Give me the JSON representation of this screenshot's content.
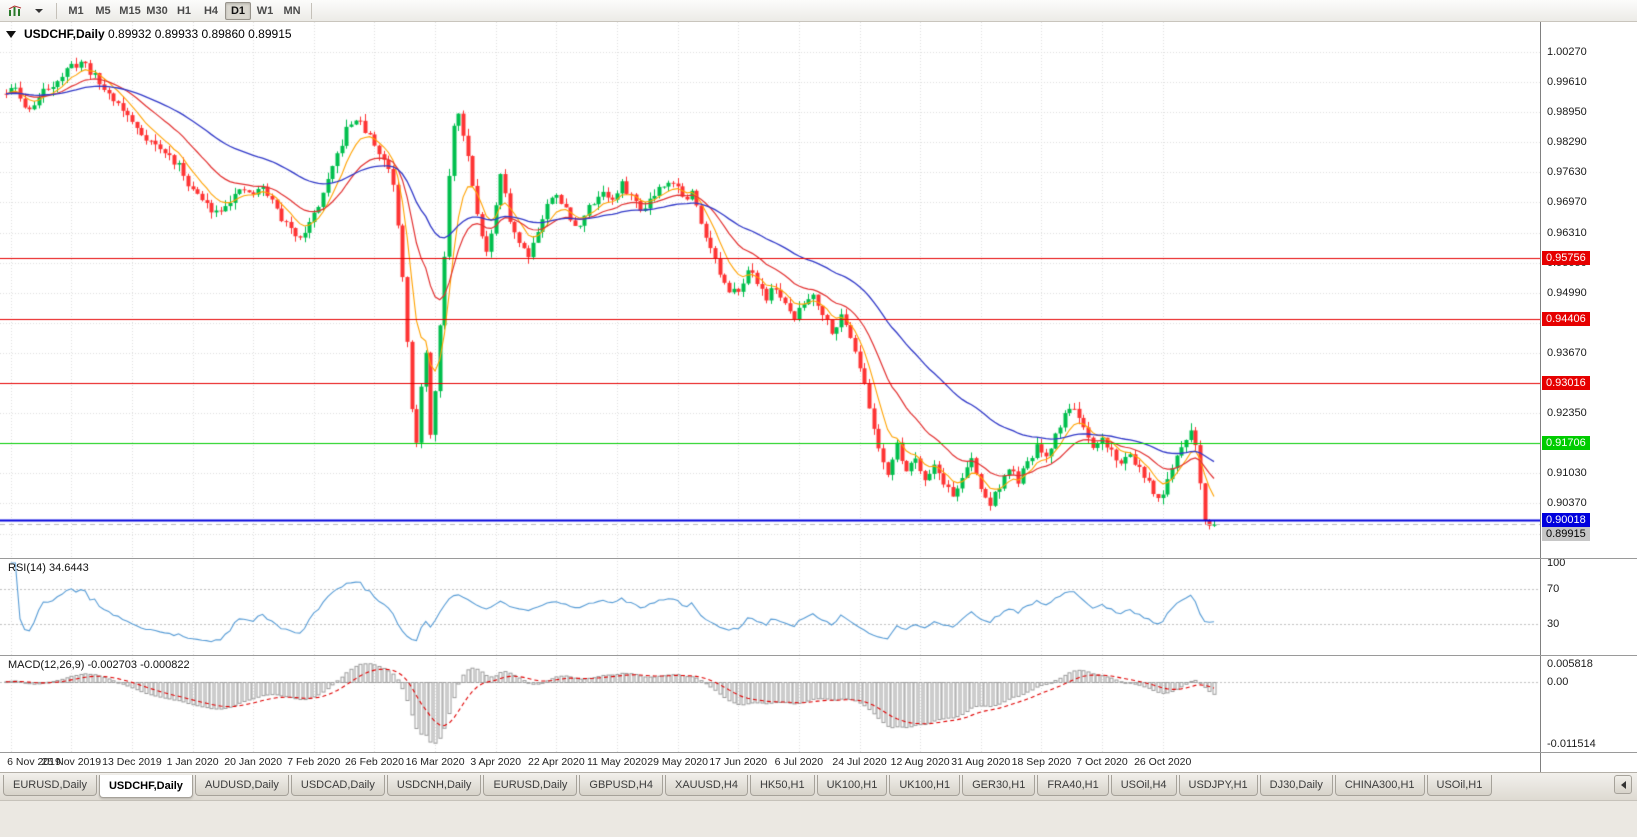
{
  "toolbar": {
    "timeframes": [
      "M1",
      "M5",
      "M15",
      "M30",
      "H1",
      "H4",
      "D1",
      "W1",
      "MN"
    ],
    "active_timeframe": "D1"
  },
  "header": {
    "symbol_period": "USDCHF,Daily",
    "ohlc": "0.89932 0.89933 0.89860 0.89915"
  },
  "price_axis": {
    "ticks": [
      "1.00270",
      "0.99610",
      "0.98950",
      "0.98290",
      "0.97630",
      "0.96970",
      "0.96310",
      "0.95650",
      "0.94990",
      "0.94330",
      "0.93670",
      "0.93010",
      "0.92350",
      "0.91690",
      "0.91030",
      "0.90370",
      "0.89710"
    ]
  },
  "hlines": [
    {
      "label": "0.95756",
      "price": 0.95756,
      "color": "#e60000",
      "text_color": "#ffffff",
      "width": 1
    },
    {
      "label": "0.94406",
      "price": 0.94406,
      "color": "#e60000",
      "text_color": "#ffffff",
      "width": 1
    },
    {
      "label": "0.93016",
      "price": 0.93016,
      "color": "#e60000",
      "text_color": "#ffffff",
      "width": 1
    },
    {
      "label": "0.91706",
      "price": 0.91706,
      "color": "#00cc00",
      "text_color": "#ffffff",
      "width": 1
    },
    {
      "label": "0.90018",
      "price": 0.90018,
      "color": "#0000dd",
      "text_color": "#ffffff",
      "width": 2
    }
  ],
  "current_price": {
    "label": "0.89915",
    "value": 0.89915,
    "badge_bg": "#c6c6c6",
    "badge_text": "#000000"
  },
  "date_axis": [
    "6 Nov 2019",
    "25 Nov 2019",
    "13 Dec 2019",
    "1 Jan 2020",
    "20 Jan 2020",
    "7 Feb 2020",
    "26 Feb 2020",
    "16 Mar 2020",
    "3 Apr 2020",
    "22 Apr 2020",
    "11 May 2020",
    "29 May 2020",
    "17 Jun 2020",
    "6 Jul 2020",
    "24 Jul 2020",
    "12 Aug 2020",
    "31 Aug 2020",
    "18 Sep 2020",
    "7 Oct 2020",
    "26 Oct 2020"
  ],
  "rsi": {
    "label": "RSI(14) 34.6443",
    "axis_labels": [
      {
        "label": "100",
        "value": 100
      },
      {
        "label": "70",
        "value": 70
      },
      {
        "label": "30",
        "value": 30
      }
    ],
    "level_lines": [
      70,
      30
    ]
  },
  "macd": {
    "label": "MACD(12,26,9) -0.002703 -0.000822",
    "axis_labels": [
      {
        "label": "0.005818",
        "pos": "top"
      },
      {
        "label": "0.00",
        "pos": "zero"
      },
      {
        "label": "-0.011514",
        "pos": "bottom"
      }
    ]
  },
  "colors": {
    "bull": "#00bf4d",
    "bear": "#fe3434",
    "ma_fast": "#ffa200",
    "ma_mid": "#e23030",
    "ma_slow": "#3038c8",
    "rsi": "#569bd5",
    "macd_hist": "#9a9a9a",
    "macd_signal": "#e00000",
    "grid": "#dddddd",
    "level": "#c0c0c0",
    "current_line": "#bcbcbc"
  },
  "tabs": {
    "active_index": 1,
    "items": [
      "EURUSD,Daily",
      "USDCHF,Daily",
      "AUDUSD,Daily",
      "USDCAD,Daily",
      "USDCNH,Daily",
      "EURUSD,Daily",
      "GBPUSD,H4",
      "XAUUSD,H4",
      "HK50,H1",
      "UK100,H1",
      "UK100,H1",
      "GER30,H1",
      "FRA40,H1",
      "USOil,H4",
      "USDJPY,H1",
      "DJ30,Daily",
      "CHINA300,H1",
      "USOil,H1"
    ]
  },
  "chart_data": {
    "type": "candlestick+indicators",
    "symbol": "USDCHF",
    "period": "Daily",
    "ohlc_display": {
      "open": "0.89932",
      "high": "0.89933",
      "low": "0.89860",
      "close": "0.89915"
    },
    "candles_count": 260,
    "seed": 11,
    "noise_amp": 0.0009,
    "wick_amp": 0.0016,
    "ylim": [
      0.8935,
      1.0075
    ],
    "ma_periods": {
      "fast": 7,
      "mid": 18,
      "slow": 45
    },
    "anchors": [
      [
        0,
        0.9935
      ],
      [
        2,
        0.9948
      ],
      [
        4,
        0.9902
      ],
      [
        6,
        0.9912
      ],
      [
        8,
        0.994
      ],
      [
        10,
        0.9958
      ],
      [
        12,
        0.9975
      ],
      [
        14,
        0.9995
      ],
      [
        16,
        1.0005
      ],
      [
        17,
        0.9998
      ],
      [
        19,
        0.9972
      ],
      [
        21,
        0.9945
      ],
      [
        23,
        0.9925
      ],
      [
        25,
        0.99
      ],
      [
        27,
        0.9872
      ],
      [
        29,
        0.9848
      ],
      [
        31,
        0.9832
      ],
      [
        33,
        0.9812
      ],
      [
        35,
        0.9798
      ],
      [
        37,
        0.9775
      ],
      [
        39,
        0.974
      ],
      [
        41,
        0.9712
      ],
      [
        43,
        0.969
      ],
      [
        45,
        0.9678
      ],
      [
        47,
        0.9695
      ],
      [
        49,
        0.9712
      ],
      [
        51,
        0.9722
      ],
      [
        53,
        0.9715
      ],
      [
        55,
        0.973
      ],
      [
        57,
        0.97
      ],
      [
        59,
        0.9662
      ],
      [
        61,
        0.9635
      ],
      [
        63,
        0.9625
      ],
      [
        65,
        0.965
      ],
      [
        67,
        0.9692
      ],
      [
        69,
        0.974
      ],
      [
        71,
        0.98
      ],
      [
        73,
        0.9855
      ],
      [
        75,
        0.9882
      ],
      [
        76,
        0.9868
      ],
      [
        78,
        0.984
      ],
      [
        80,
        0.9805
      ],
      [
        82,
        0.9773
      ],
      [
        83,
        0.974
      ],
      [
        84,
        0.965
      ],
      [
        85,
        0.954
      ],
      [
        86,
        0.94
      ],
      [
        87,
        0.925
      ],
      [
        88,
        0.9165
      ],
      [
        89,
        0.929
      ],
      [
        90,
        0.936
      ],
      [
        91,
        0.9195
      ],
      [
        92,
        0.928
      ],
      [
        93,
        0.942
      ],
      [
        94,
        0.958
      ],
      [
        95,
        0.975
      ],
      [
        96,
        0.987
      ],
      [
        97,
        0.9888
      ],
      [
        98,
        0.985
      ],
      [
        99,
        0.98
      ],
      [
        100,
        0.974
      ],
      [
        101,
        0.968
      ],
      [
        102,
        0.962
      ],
      [
        103,
        0.9585
      ],
      [
        104,
        0.962
      ],
      [
        105,
        0.969
      ],
      [
        106,
        0.9752
      ],
      [
        107,
        0.9718
      ],
      [
        108,
        0.966
      ],
      [
        110,
        0.961
      ],
      [
        112,
        0.9585
      ],
      [
        114,
        0.9635
      ],
      [
        116,
        0.969
      ],
      [
        118,
        0.972
      ],
      [
        120,
        0.968
      ],
      [
        122,
        0.964
      ],
      [
        124,
        0.9668
      ],
      [
        126,
        0.97
      ],
      [
        128,
        0.9722
      ],
      [
        130,
        0.97
      ],
      [
        132,
        0.9735
      ],
      [
        134,
        0.9712
      ],
      [
        136,
        0.968
      ],
      [
        138,
        0.9705
      ],
      [
        140,
        0.973
      ],
      [
        142,
        0.9748
      ],
      [
        144,
        0.973
      ],
      [
        146,
        0.97
      ],
      [
        147,
        0.972
      ],
      [
        149,
        0.9655
      ],
      [
        151,
        0.96
      ],
      [
        153,
        0.954
      ],
      [
        155,
        0.9492
      ],
      [
        157,
        0.951
      ],
      [
        159,
        0.9545
      ],
      [
        161,
        0.9525
      ],
      [
        163,
        0.949
      ],
      [
        165,
        0.9512
      ],
      [
        167,
        0.9468
      ],
      [
        169,
        0.9445
      ],
      [
        171,
        0.9475
      ],
      [
        173,
        0.9498
      ],
      [
        175,
        0.9455
      ],
      [
        177,
        0.9418
      ],
      [
        179,
        0.9445
      ],
      [
        181,
        0.9408
      ],
      [
        183,
        0.934
      ],
      [
        185,
        0.9245
      ],
      [
        187,
        0.916
      ],
      [
        189,
        0.9105
      ],
      [
        191,
        0.9162
      ],
      [
        193,
        0.9112
      ],
      [
        195,
        0.9138
      ],
      [
        197,
        0.9092
      ],
      [
        199,
        0.9122
      ],
      [
        201,
        0.9085
      ],
      [
        203,
        0.9052
      ],
      [
        205,
        0.9095
      ],
      [
        207,
        0.9132
      ],
      [
        209,
        0.9068
      ],
      [
        211,
        0.9035
      ],
      [
        213,
        0.9078
      ],
      [
        215,
        0.9112
      ],
      [
        217,
        0.9088
      ],
      [
        219,
        0.9122
      ],
      [
        221,
        0.9162
      ],
      [
        223,
        0.9132
      ],
      [
        225,
        0.9188
      ],
      [
        227,
        0.9232
      ],
      [
        229,
        0.9252
      ],
      [
        231,
        0.9195
      ],
      [
        233,
        0.9152
      ],
      [
        235,
        0.9178
      ],
      [
        237,
        0.9152
      ],
      [
        239,
        0.9122
      ],
      [
        241,
        0.9148
      ],
      [
        243,
        0.9112
      ],
      [
        245,
        0.9078
      ],
      [
        247,
        0.9045
      ],
      [
        249,
        0.9082
      ],
      [
        251,
        0.9135
      ],
      [
        253,
        0.9182
      ],
      [
        254,
        0.9195
      ],
      [
        255,
        0.9172
      ],
      [
        256,
        0.908
      ],
      [
        257,
        0.8998
      ],
      [
        258,
        0.8994
      ],
      [
        259,
        0.89915
      ]
    ]
  }
}
